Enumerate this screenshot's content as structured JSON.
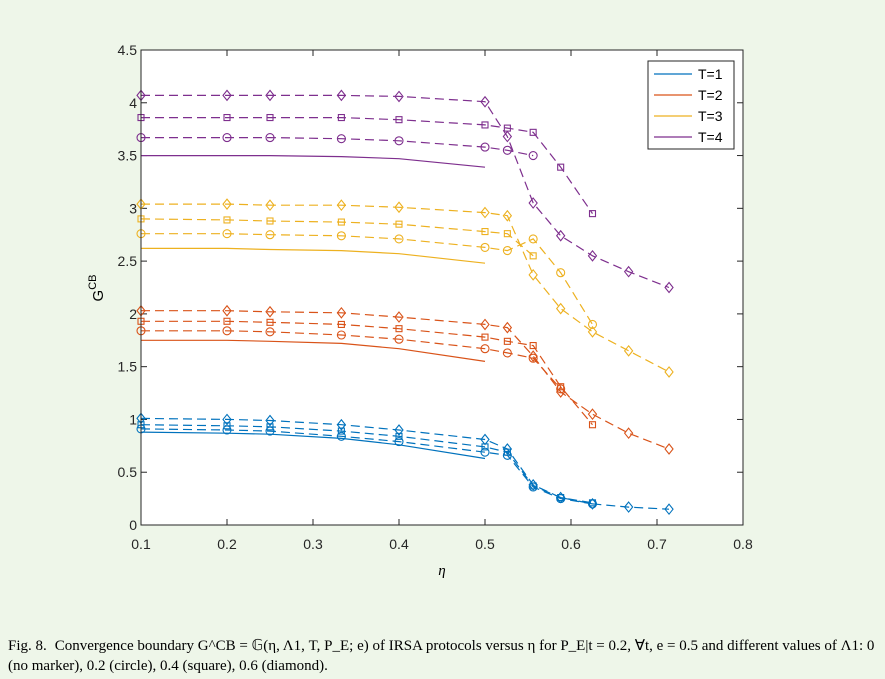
{
  "chart_data": {
    "type": "line",
    "xlabel": "η",
    "ylabel_main": "G",
    "ylabel_sup": "CB",
    "xlim": [
      0.1,
      0.8
    ],
    "ylim": [
      0,
      4.5
    ],
    "x_ticks": [
      "0.1",
      "0.2",
      "0.3",
      "0.4",
      "0.5",
      "0.6",
      "0.7",
      "0.8"
    ],
    "y_ticks": [
      "0",
      "0.5",
      "1",
      "1.5",
      "2",
      "2.5",
      "3",
      "3.5",
      "4",
      "4.5"
    ],
    "legend_position": "top-right",
    "legend": [
      {
        "label": "T=1",
        "color": "#0072bd"
      },
      {
        "label": "T=2",
        "color": "#d95319"
      },
      {
        "label": "T=3",
        "color": "#edb120"
      },
      {
        "label": "T=4",
        "color": "#7e2f8e"
      }
    ],
    "series": [
      {
        "T": 1,
        "lambda": 0,
        "marker": "none",
        "color": "#0072bd",
        "x": [
          0.1,
          0.2,
          0.25,
          0.333,
          0.4,
          0.5
        ],
        "y": [
          0.88,
          0.87,
          0.86,
          0.82,
          0.76,
          0.63
        ]
      },
      {
        "T": 1,
        "lambda": 0.2,
        "marker": "circle",
        "color": "#0072bd",
        "x": [
          0.1,
          0.2,
          0.25,
          0.333,
          0.4,
          0.5,
          0.526,
          0.556,
          0.588,
          0.625
        ],
        "y": [
          0.91,
          0.9,
          0.89,
          0.84,
          0.79,
          0.69,
          0.66,
          0.36,
          0.25,
          0.2
        ]
      },
      {
        "T": 1,
        "lambda": 0.4,
        "marker": "square",
        "color": "#0072bd",
        "x": [
          0.1,
          0.2,
          0.25,
          0.333,
          0.4,
          0.5,
          0.526,
          0.556,
          0.588,
          0.625
        ],
        "y": [
          0.95,
          0.94,
          0.93,
          0.89,
          0.84,
          0.74,
          0.69,
          0.37,
          0.26,
          0.21
        ]
      },
      {
        "T": 1,
        "lambda": 0.6,
        "marker": "diamond",
        "color": "#0072bd",
        "x": [
          0.1,
          0.2,
          0.25,
          0.333,
          0.4,
          0.5,
          0.526,
          0.556,
          0.588,
          0.625,
          0.667,
          0.714
        ],
        "y": [
          1.01,
          1.0,
          0.99,
          0.95,
          0.9,
          0.81,
          0.72,
          0.38,
          0.26,
          0.2,
          0.17,
          0.15
        ]
      },
      {
        "T": 2,
        "lambda": 0,
        "marker": "none",
        "color": "#d95319",
        "x": [
          0.1,
          0.2,
          0.25,
          0.333,
          0.4,
          0.5
        ],
        "y": [
          1.75,
          1.75,
          1.74,
          1.72,
          1.67,
          1.55
        ]
      },
      {
        "T": 2,
        "lambda": 0.2,
        "marker": "circle",
        "color": "#d95319",
        "x": [
          0.1,
          0.2,
          0.25,
          0.333,
          0.4,
          0.5,
          0.526,
          0.556,
          0.588
        ],
        "y": [
          1.84,
          1.84,
          1.83,
          1.8,
          1.76,
          1.67,
          1.63,
          1.58,
          1.29
        ]
      },
      {
        "T": 2,
        "lambda": 0.4,
        "marker": "square",
        "color": "#d95319",
        "x": [
          0.1,
          0.2,
          0.25,
          0.333,
          0.4,
          0.5,
          0.526,
          0.556,
          0.588,
          0.625
        ],
        "y": [
          1.93,
          1.93,
          1.92,
          1.9,
          1.86,
          1.78,
          1.74,
          1.7,
          1.31,
          0.95
        ]
      },
      {
        "T": 2,
        "lambda": 0.6,
        "marker": "diamond",
        "color": "#d95319",
        "x": [
          0.1,
          0.2,
          0.25,
          0.333,
          0.4,
          0.5,
          0.526,
          0.556,
          0.588,
          0.625,
          0.667,
          0.714
        ],
        "y": [
          2.03,
          2.03,
          2.02,
          2.01,
          1.97,
          1.9,
          1.87,
          1.6,
          1.26,
          1.05,
          0.87,
          0.72
        ]
      },
      {
        "T": 3,
        "lambda": 0,
        "marker": "none",
        "color": "#edb120",
        "x": [
          0.1,
          0.2,
          0.25,
          0.333,
          0.4,
          0.5
        ],
        "y": [
          2.62,
          2.62,
          2.61,
          2.6,
          2.57,
          2.48
        ]
      },
      {
        "T": 3,
        "lambda": 0.2,
        "marker": "circle",
        "color": "#edb120",
        "x": [
          0.1,
          0.2,
          0.25,
          0.333,
          0.4,
          0.5,
          0.526,
          0.556,
          0.588,
          0.625
        ],
        "y": [
          2.76,
          2.76,
          2.75,
          2.74,
          2.71,
          2.63,
          2.6,
          2.71,
          2.39,
          1.9
        ]
      },
      {
        "T": 3,
        "lambda": 0.4,
        "marker": "square",
        "color": "#edb120",
        "x": [
          0.1,
          0.2,
          0.25,
          0.333,
          0.4,
          0.5,
          0.526,
          0.556
        ],
        "y": [
          2.9,
          2.89,
          2.88,
          2.87,
          2.85,
          2.78,
          2.76,
          2.55
        ]
      },
      {
        "T": 3,
        "lambda": 0.6,
        "marker": "diamond",
        "color": "#edb120",
        "x": [
          0.1,
          0.2,
          0.25,
          0.333,
          0.4,
          0.5,
          0.526,
          0.556,
          0.588,
          0.625,
          0.667,
          0.714
        ],
        "y": [
          3.04,
          3.04,
          3.03,
          3.03,
          3.01,
          2.96,
          2.93,
          2.37,
          2.05,
          1.83,
          1.65,
          1.45
        ]
      },
      {
        "T": 4,
        "lambda": 0,
        "marker": "none",
        "color": "#7e2f8e",
        "x": [
          0.1,
          0.2,
          0.25,
          0.333,
          0.4,
          0.5
        ],
        "y": [
          3.5,
          3.5,
          3.5,
          3.49,
          3.47,
          3.39
        ]
      },
      {
        "T": 4,
        "lambda": 0.2,
        "marker": "circle",
        "color": "#7e2f8e",
        "x": [
          0.1,
          0.2,
          0.25,
          0.333,
          0.4,
          0.5,
          0.526,
          0.556
        ],
        "y": [
          3.67,
          3.67,
          3.67,
          3.66,
          3.64,
          3.58,
          3.55,
          3.5
        ]
      },
      {
        "T": 4,
        "lambda": 0.4,
        "marker": "square",
        "color": "#7e2f8e",
        "x": [
          0.1,
          0.2,
          0.25,
          0.333,
          0.4,
          0.5,
          0.526,
          0.556,
          0.588,
          0.625
        ],
        "y": [
          3.86,
          3.86,
          3.86,
          3.86,
          3.84,
          3.79,
          3.76,
          3.72,
          3.39,
          2.95
        ]
      },
      {
        "T": 4,
        "lambda": 0.6,
        "marker": "diamond",
        "color": "#7e2f8e",
        "x": [
          0.1,
          0.2,
          0.25,
          0.333,
          0.4,
          0.5,
          0.526,
          0.556,
          0.588,
          0.625,
          0.667,
          0.714
        ],
        "y": [
          4.07,
          4.07,
          4.07,
          4.07,
          4.06,
          4.01,
          3.68,
          3.05,
          2.74,
          2.55,
          2.4,
          2.25
        ]
      }
    ]
  },
  "caption": {
    "label": "Fig. 8.",
    "text": "Convergence boundary G^CB = 𝔾(η, Λ1, T, P_E; e) of IRSA protocols versus η for P_E|t = 0.2, ∀t, e = 0.5 and different values of Λ1: 0 (no marker), 0.2 (circle), 0.4 (square), 0.6 (diamond)."
  }
}
